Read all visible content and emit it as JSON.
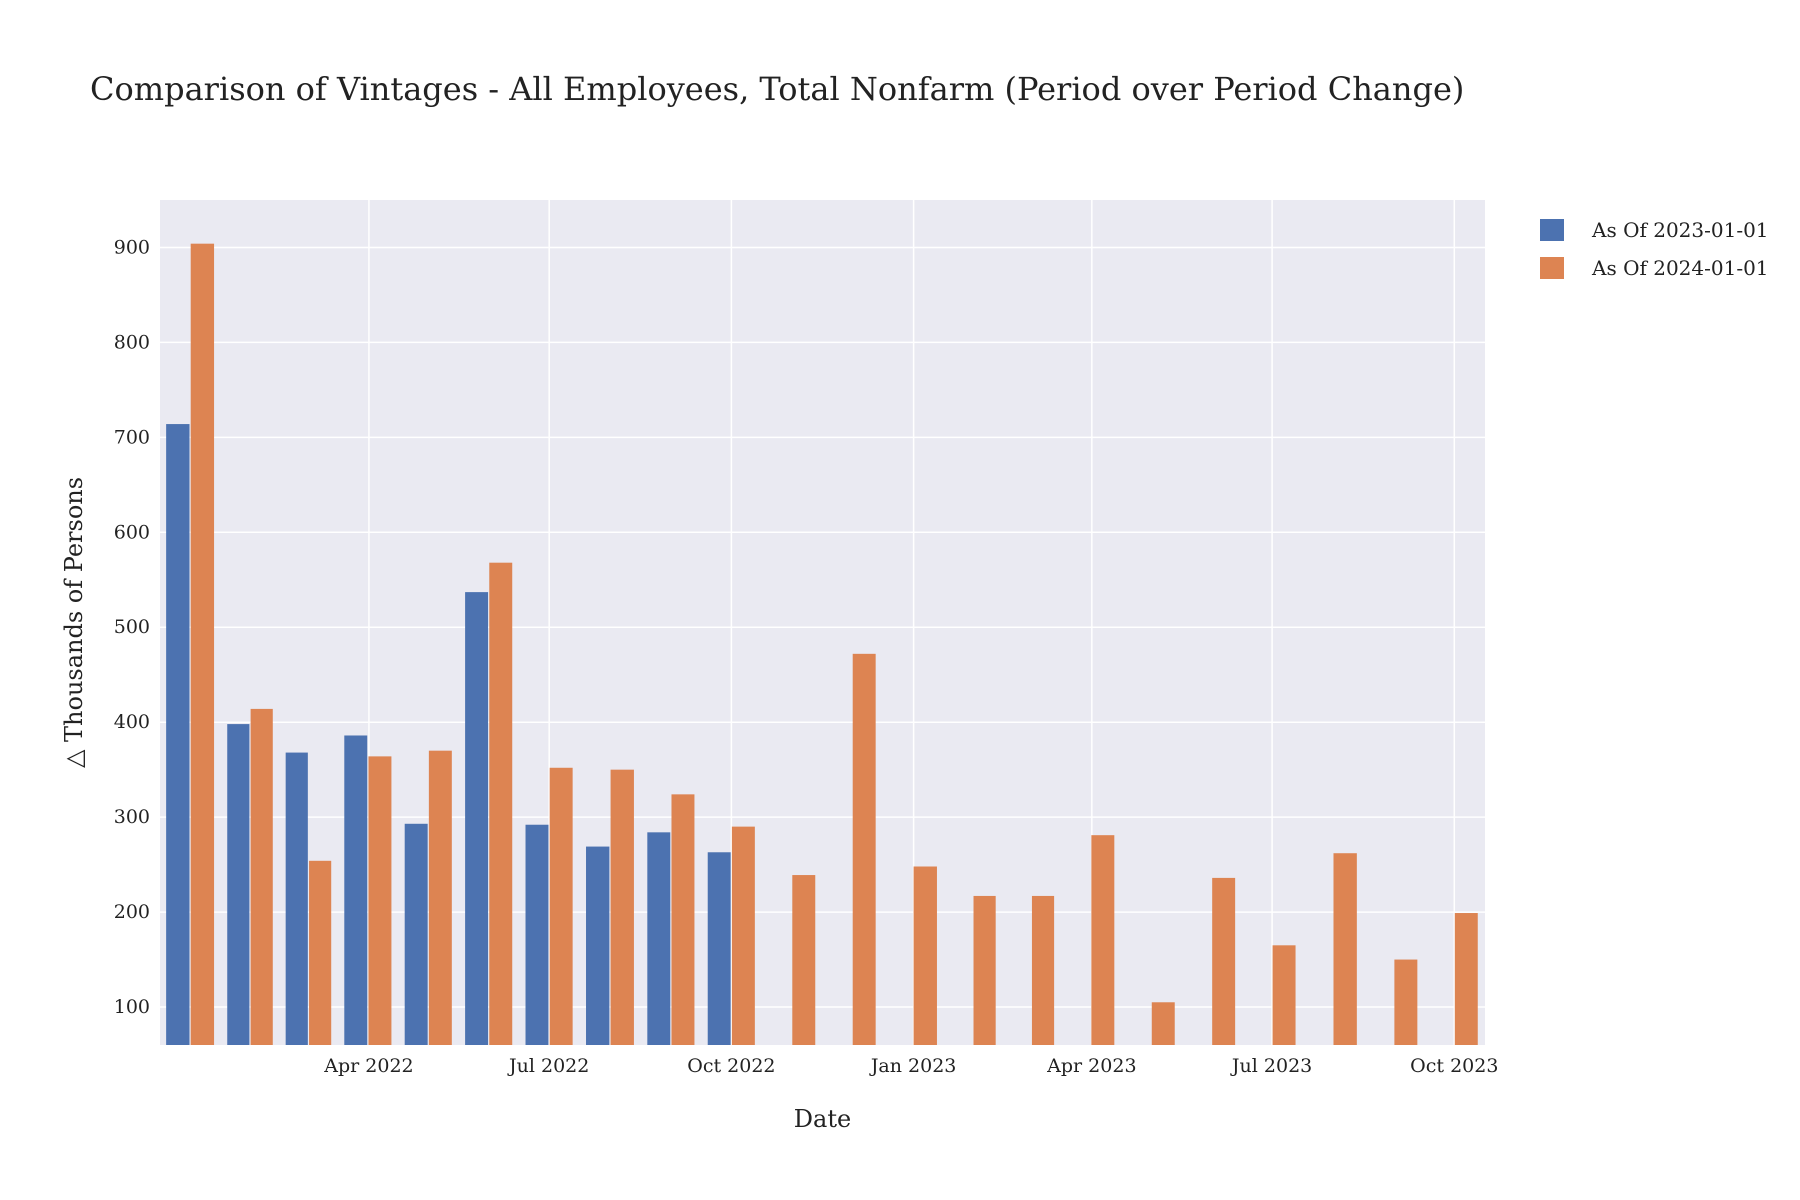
{
  "chart_data": {
    "type": "bar",
    "title": "Comparison of Vintages - All Employees, Total Nonfarm (Period over Period Change)",
    "xlabel": "Date",
    "ylabel": "△ Thousands of Persons",
    "x": [
      "2022-01-01",
      "2022-02-01",
      "2022-03-01",
      "2022-04-01",
      "2022-05-01",
      "2022-06-01",
      "2022-07-01",
      "2022-08-01",
      "2022-09-01",
      "2022-10-01",
      "2022-11-01",
      "2022-12-01",
      "2023-01-01",
      "2023-02-01",
      "2023-03-01",
      "2023-04-01",
      "2023-05-01",
      "2023-06-01",
      "2023-07-01",
      "2023-08-01",
      "2023-09-01",
      "2023-10-01",
      "2023-11-01"
    ],
    "x_tick_labels": [
      {
        "date": "2022-04-01",
        "label": "Apr 2022"
      },
      {
        "date": "2022-07-01",
        "label": "Jul 2022"
      },
      {
        "date": "2022-10-01",
        "label": "Oct 2022"
      },
      {
        "date": "2023-01-01",
        "label": "Jan 2023"
      },
      {
        "date": "2023-04-01",
        "label": "Apr 2023"
      },
      {
        "date": "2023-07-01",
        "label": "Jul 2023"
      },
      {
        "date": "2023-10-01",
        "label": "Oct 2023"
      }
    ],
    "y_ticks": [
      100,
      200,
      300,
      400,
      500,
      600,
      700,
      800,
      900
    ],
    "ylim": [
      60,
      950
    ],
    "grid": true,
    "legend_position": "top-right",
    "series": [
      {
        "name": "As Of 2023-01-01",
        "color": "#4c72b0",
        "values": [
          714,
          398,
          368,
          386,
          293,
          537,
          292,
          269,
          284,
          263,
          null,
          null,
          null,
          null,
          null,
          null,
          null,
          null,
          null,
          null,
          null,
          null,
          null
        ]
      },
      {
        "name": "As Of 2024-01-01",
        "color": "#dd8452",
        "values": [
          904,
          414,
          254,
          364,
          370,
          568,
          352,
          350,
          324,
          290,
          239,
          472,
          248,
          217,
          217,
          281,
          105,
          236,
          165,
          262,
          150,
          199,
          null
        ]
      }
    ]
  }
}
